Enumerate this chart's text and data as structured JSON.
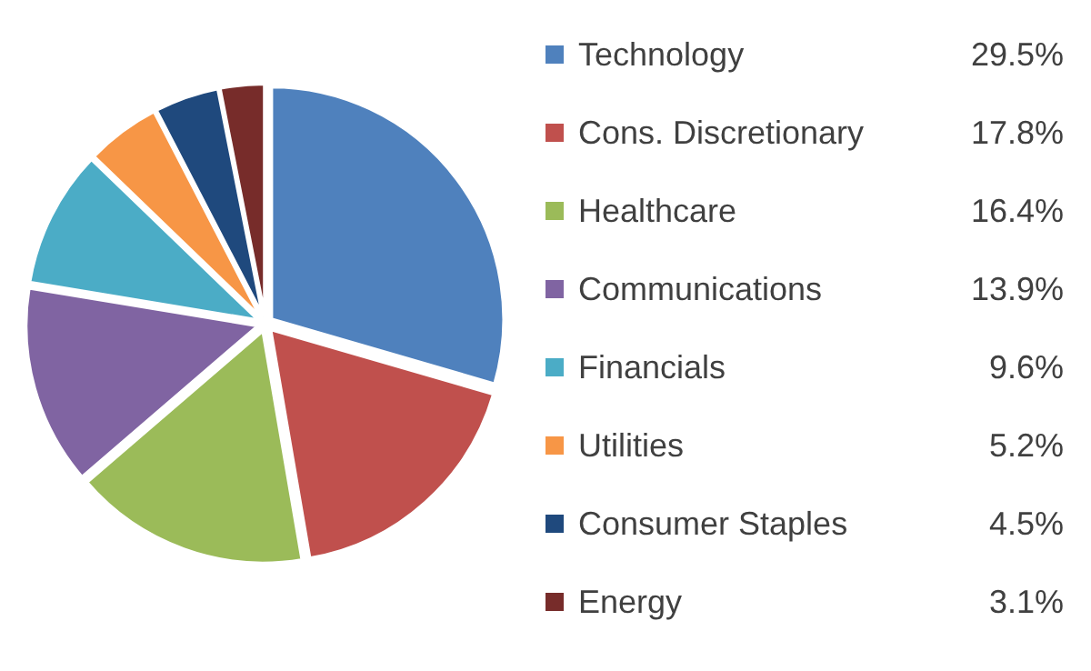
{
  "chart_data": {
    "type": "pie",
    "categories": [
      "Technology",
      "Cons. Discretionary",
      "Healthcare",
      "Communications",
      "Financials",
      "Utilities",
      "Consumer Staples",
      "Energy"
    ],
    "values": [
      29.5,
      17.8,
      16.4,
      13.9,
      9.6,
      5.2,
      4.5,
      3.1
    ],
    "value_labels": [
      "29.5%",
      "17.8%",
      "16.4%",
      "13.9%",
      "9.6%",
      "5.2%",
      "4.5%",
      "3.1%"
    ],
    "colors": [
      "#4f81bd",
      "#c0504d",
      "#9bbb59",
      "#8064a2",
      "#4bacc6",
      "#f79646",
      "#1f497d",
      "#772c2a"
    ],
    "legend": "right"
  }
}
